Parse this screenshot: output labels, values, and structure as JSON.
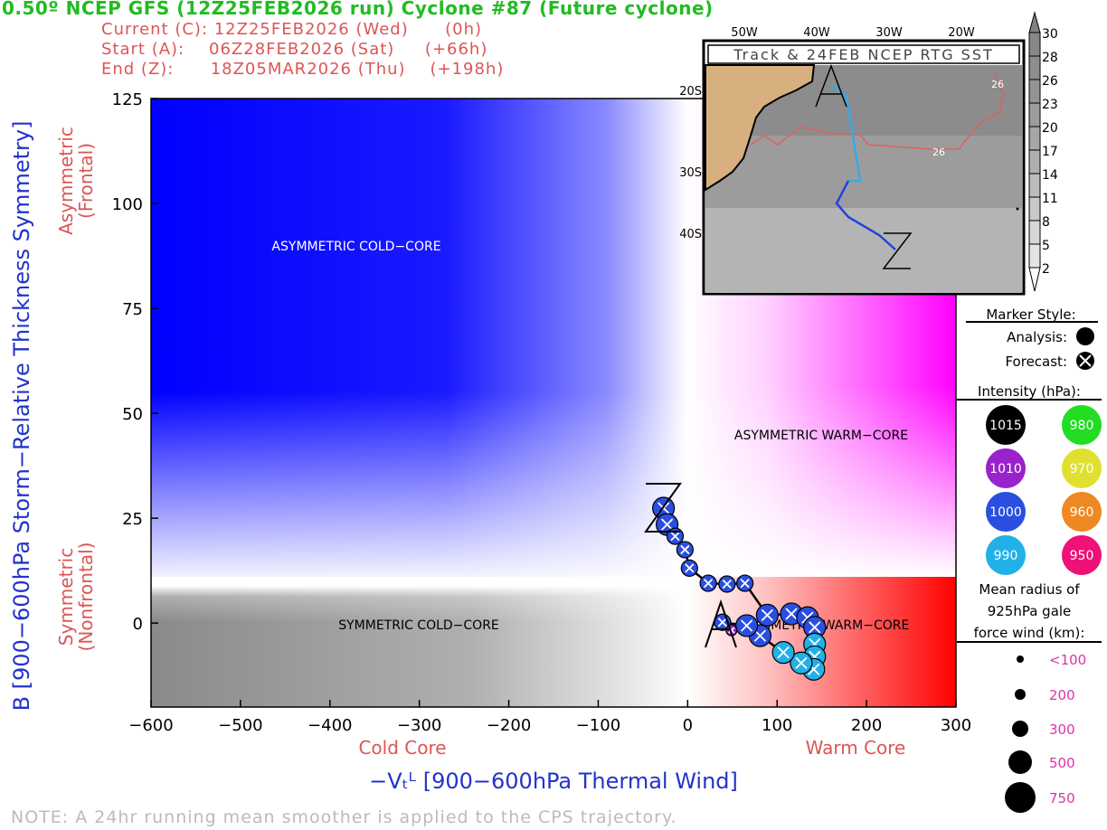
{
  "header": {
    "title": "0.50º NCEP GFS (12Z25FEB2026 run) Cyclone #87 (Future cyclone)",
    "current": "Current (C): 12Z25FEB2026 (Wed)      (0h)",
    "start": "Start (A):    06Z28FEB2026 (Sat)     (+66h)",
    "end": "End (Z):      18Z05MAR2026 (Thu)    (+198h)"
  },
  "note": "NOTE:  A 24hr running mean smoother is applied to the CPS trajectory.",
  "chart_data": {
    "type": "scatter",
    "xlabel": "−Vₜᴸ [900−600hPa Thermal Wind]",
    "ylabel": "B [900−600hPa Storm−Relative Thickness Symmetry]",
    "xlim": [
      -600,
      300
    ],
    "ylim": [
      -20,
      125
    ],
    "xticks": [
      "−600",
      "−500",
      "−400",
      "−300",
      "−200",
      "−100",
      "0",
      "100",
      "200",
      "300"
    ],
    "xtick_values": [
      -600,
      -500,
      -400,
      -300,
      -200,
      -100,
      0,
      100,
      200,
      300
    ],
    "yticks": [
      "125",
      "100",
      "75",
      "50",
      "25",
      "0"
    ],
    "ytick_values": [
      125,
      100,
      75,
      50,
      25,
      0
    ],
    "x_sub_left": "Cold Core",
    "x_sub_right": "Warm Core",
    "y_sub_top": [
      "Asymmetric",
      "(Frontal)"
    ],
    "y_sub_bottom": [
      "Symmetric",
      "(Nonfrontal)"
    ],
    "regions": {
      "asym_cold": "ASYMMETRIC COLD−CORE",
      "asym_warm": "ASYMMETRIC WARM−CORE",
      "sym_cold": "SYMMETRIC COLD−CORE",
      "sym_warm": "SYMMETRIC WARM−CORE"
    },
    "start_marker": "A",
    "end_marker": "Z",
    "trajectory": [
      {
        "x": 49,
        "y": -1.7,
        "hpa": 1010,
        "wind": "<100",
        "style": "forecast"
      },
      {
        "x": 39,
        "y": 0.2,
        "hpa": 1000,
        "wind": "200",
        "style": "forecast"
      },
      {
        "x": 66,
        "y": -0.6,
        "hpa": 1000,
        "wind": "300",
        "style": "forecast"
      },
      {
        "x": 81,
        "y": -3,
        "hpa": 1000,
        "wind": "300",
        "style": "forecast"
      },
      {
        "x": 107,
        "y": -7,
        "hpa": 990,
        "wind": "300",
        "style": "forecast"
      },
      {
        "x": 127,
        "y": -9.5,
        "hpa": 990,
        "wind": "300",
        "style": "forecast"
      },
      {
        "x": 141,
        "y": -11,
        "hpa": 990,
        "wind": "300",
        "style": "forecast"
      },
      {
        "x": 142,
        "y": -8,
        "hpa": 990,
        "wind": "300",
        "style": "forecast"
      },
      {
        "x": 142,
        "y": -5,
        "hpa": 990,
        "wind": "300",
        "style": "forecast"
      },
      {
        "x": 142,
        "y": -1,
        "hpa": 1000,
        "wind": "300",
        "style": "forecast"
      },
      {
        "x": 134,
        "y": 1.3,
        "hpa": 1000,
        "wind": "300",
        "style": "forecast"
      },
      {
        "x": 116,
        "y": 2.2,
        "hpa": 1000,
        "wind": "300",
        "style": "forecast"
      },
      {
        "x": 89,
        "y": 1.9,
        "hpa": 1000,
        "wind": "300",
        "style": "forecast"
      },
      {
        "x": 64,
        "y": 9.5,
        "hpa": 1000,
        "wind": "200",
        "style": "forecast"
      },
      {
        "x": 44,
        "y": 9.3,
        "hpa": 1000,
        "wind": "200",
        "style": "forecast"
      },
      {
        "x": 23,
        "y": 9.5,
        "hpa": 1000,
        "wind": "200",
        "style": "forecast"
      },
      {
        "x": 2,
        "y": 13.1,
        "hpa": 1000,
        "wind": "200",
        "style": "forecast"
      },
      {
        "x": -3,
        "y": 17.5,
        "hpa": 1000,
        "wind": "200",
        "style": "forecast"
      },
      {
        "x": -14,
        "y": 20.7,
        "hpa": 1000,
        "wind": "200",
        "style": "forecast"
      },
      {
        "x": -23,
        "y": 23.5,
        "hpa": 1000,
        "wind": "300",
        "style": "forecast"
      },
      {
        "x": -27,
        "y": 27.4,
        "hpa": 1000,
        "wind": "300",
        "style": "forecast"
      }
    ],
    "grid": false
  },
  "colors": {
    "1015": "#000000",
    "1010": "#9922cc",
    "1000": "#2a4fe0",
    "990": "#22b0e8",
    "980": "#22dd22",
    "970": "#e0e030",
    "960": "#ee8822",
    "950": "#ee1177",
    "blue": "#0000ff",
    "magenta": "#ff00ff",
    "red": "#ff0000"
  },
  "inset": {
    "title": "Track & 24FEB NCEP RTG SST",
    "lon_labels": [
      "50W",
      "40W",
      "30W",
      "20W"
    ],
    "lat_labels": [
      "20S",
      "30S",
      "40S"
    ],
    "contour_label": "26",
    "start": "A",
    "end": "Z",
    "colorbar": [
      "30",
      "28",
      "26",
      "23",
      "20",
      "17",
      "14",
      "11",
      "8",
      "5",
      "2"
    ]
  },
  "legend": {
    "marker_title": "Marker Style:",
    "analysis": "Analysis:",
    "forecast": "Forecast:",
    "intensity_title": "Intensity (hPa):",
    "intensity": [
      "1015",
      "980",
      "1010",
      "970",
      "1000",
      "960",
      "990",
      "950"
    ],
    "radius_title": [
      "Mean radius of",
      "925hPa gale",
      "force wind (km):"
    ],
    "radius": [
      "<100",
      "200",
      "300",
      "500",
      "750"
    ]
  }
}
